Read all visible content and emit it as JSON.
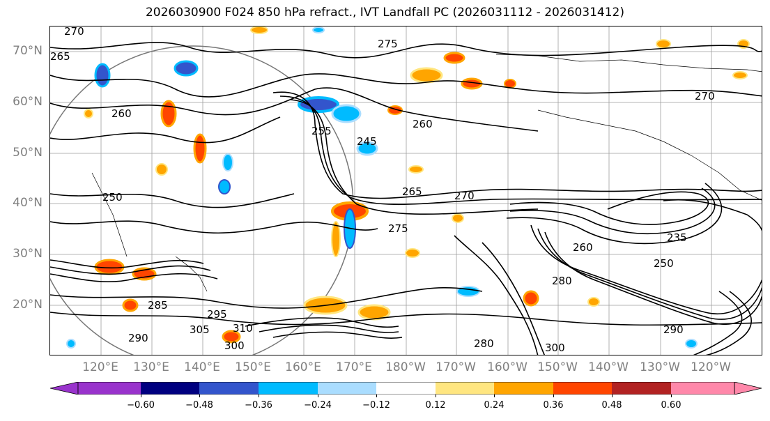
{
  "title": "2026030900 F024 850 hPa refract., IVT Landfall PC (2026031112 - 2026031412)",
  "map": {
    "lat_labels": [
      "70°N",
      "60°N",
      "50°N",
      "40°N",
      "30°N",
      "20°N"
    ],
    "lon_labels": [
      "120°E",
      "130°E",
      "140°E",
      "150°E",
      "160°E",
      "170°E",
      "180°W",
      "170°W",
      "160°W",
      "150°W",
      "140°W",
      "130°W",
      "120°W"
    ],
    "contour_labels": [
      "270",
      "265",
      "260",
      "255",
      "250",
      "245",
      "265",
      "270",
      "260",
      "275",
      "280",
      "285",
      "290",
      "295",
      "300",
      "305",
      "310",
      "260",
      "250",
      "235",
      "275",
      "270",
      "280",
      "290",
      "300"
    ],
    "contour_color": "#000000",
    "grid_color": "#9e9e9e",
    "label_color": "#808080"
  },
  "colorbar": {
    "colors": [
      "#9933cc",
      "#000080",
      "#3355cc",
      "#00bbff",
      "#aaddff",
      "#ffffff",
      "#ffe680",
      "#ffa500",
      "#ff4500",
      "#b22222",
      "#ff88aa"
    ],
    "ticks": [
      "−0.60",
      "−0.48",
      "−0.36",
      "−0.24",
      "−0.12",
      "0.12",
      "0.24",
      "0.36",
      "0.48",
      "0.60"
    ],
    "extend": "both"
  }
}
